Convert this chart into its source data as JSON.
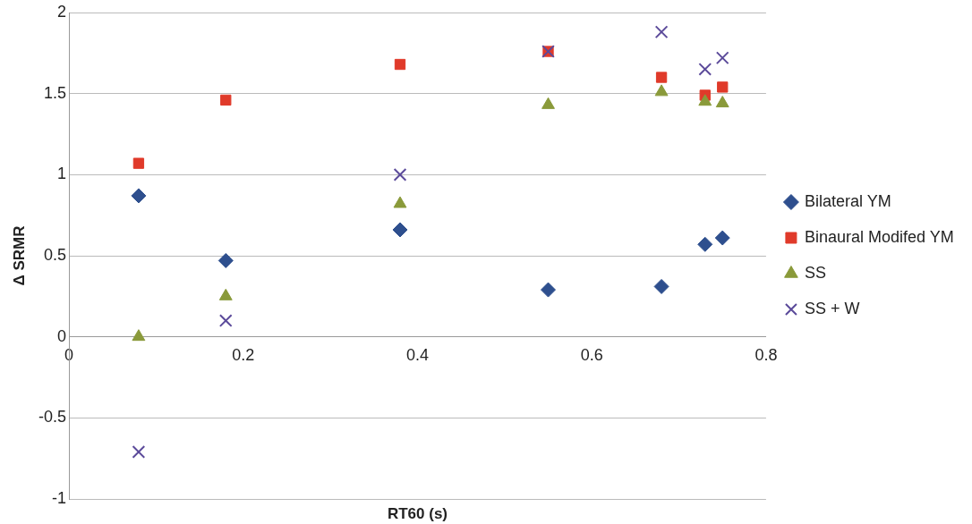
{
  "chart_data": {
    "type": "scatter",
    "xlabel": "RT60 (s)",
    "ylabel": "Δ SRMR",
    "xlim": [
      0,
      0.8
    ],
    "xticks": [
      0,
      0.2,
      0.4,
      0.6,
      0.8
    ],
    "ylim": [
      -1,
      2
    ],
    "yticks": [
      -1,
      -0.5,
      0,
      0.5,
      1,
      1.5,
      2
    ],
    "grid": "y",
    "legend": "right",
    "x": [
      0.08,
      0.18,
      0.38,
      0.55,
      0.68,
      0.73,
      0.75
    ],
    "series": [
      {
        "name": "Bilateral YM",
        "color": "#2e4f8e",
        "marker": "diamond",
        "values": [
          0.87,
          0.47,
          0.66,
          0.29,
          0.31,
          0.57,
          0.61
        ]
      },
      {
        "name": "Binaural Modifed YM",
        "color": "#e03a2a",
        "marker": "square",
        "values": [
          1.07,
          1.46,
          1.68,
          1.76,
          1.6,
          1.49,
          1.54
        ]
      },
      {
        "name": "SS",
        "color": "#8a9a3a",
        "marker": "triangle",
        "values": [
          0,
          0.25,
          0.82,
          1.43,
          1.51,
          1.45,
          1.44
        ]
      },
      {
        "name": "SS + W",
        "color": "#5b4a9a",
        "marker": "cross",
        "values": [
          -0.71,
          0.1,
          1.0,
          1.76,
          1.88,
          1.65,
          1.72
        ]
      }
    ]
  }
}
